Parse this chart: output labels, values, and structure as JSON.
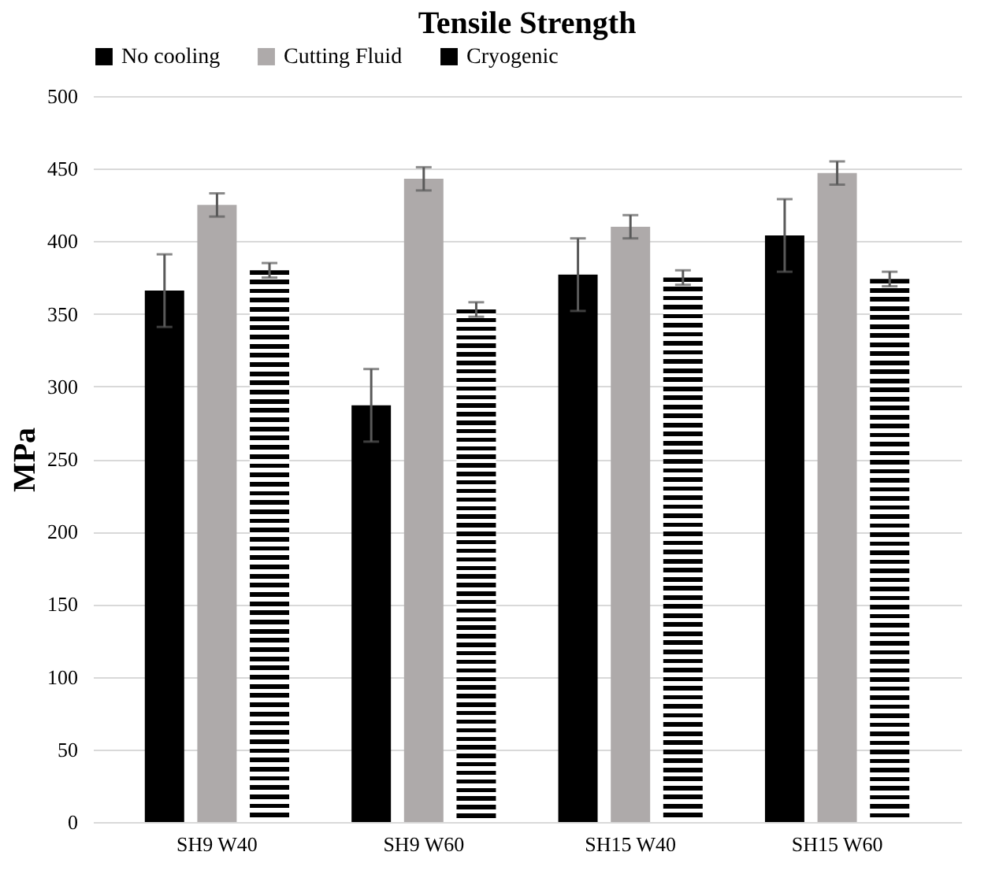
{
  "chart_data": {
    "type": "bar",
    "title": "Tensile Strength",
    "ylabel": "MPa",
    "categories": [
      "SH9 W40",
      "SH9 W60",
      "SH15 W40",
      "SH15 W60"
    ],
    "series": [
      {
        "name": "No cooling",
        "color": "#000000",
        "values": [
          366,
          287,
          377,
          404
        ],
        "errors": [
          25,
          25,
          25,
          25
        ]
      },
      {
        "name": "Cutting Fluid",
        "color": "#aeaaaa",
        "values": [
          425,
          443,
          410,
          447
        ],
        "errors": [
          8,
          8,
          8,
          8
        ]
      },
      {
        "name": "Cryogenic",
        "color": "#000000",
        "values": [
          380,
          353,
          375,
          374
        ],
        "errors": [
          5,
          5,
          5,
          5
        ]
      }
    ],
    "ylim": [
      0,
      500
    ],
    "yticks": [
      0,
      50,
      100,
      150,
      200,
      250,
      300,
      350,
      400,
      450,
      500
    ],
    "grid": "y",
    "legend": "top"
  }
}
